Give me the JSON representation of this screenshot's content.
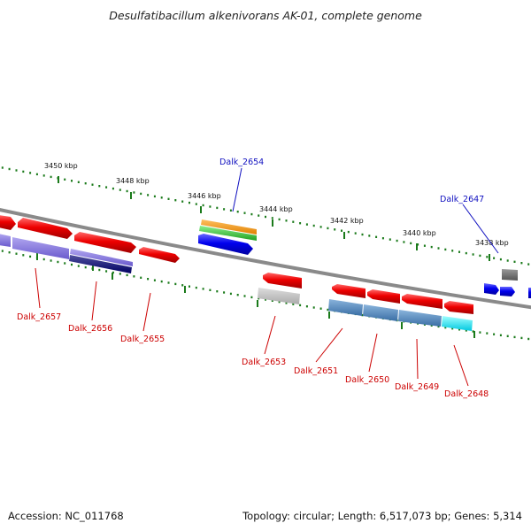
{
  "title": "Desulfatibacillum alkenivorans AK-01, complete genome",
  "ticks": [
    {
      "label": "3450 kbp"
    },
    {
      "label": "3448 kbp"
    },
    {
      "label": "3446 kbp"
    },
    {
      "label": "3444 kbp"
    },
    {
      "label": "3442 kbp"
    },
    {
      "label": "3440 kbp"
    },
    {
      "label": "3438 kbp"
    }
  ],
  "genes_labeled": [
    {
      "name": "Dalk_2654",
      "strand": "top"
    },
    {
      "name": "Dalk_2647",
      "strand": "top"
    },
    {
      "name": "Dalk_2657",
      "strand": "bottom"
    },
    {
      "name": "Dalk_2656",
      "strand": "bottom"
    },
    {
      "name": "Dalk_2655",
      "strand": "bottom"
    },
    {
      "name": "Dalk_2653",
      "strand": "bottom"
    },
    {
      "name": "Dalk_2651",
      "strand": "bottom"
    },
    {
      "name": "Dalk_2650",
      "strand": "bottom"
    },
    {
      "name": "Dalk_2649",
      "strand": "bottom"
    },
    {
      "name": "Dalk_2648",
      "strand": "bottom"
    }
  ],
  "colors": {
    "backbone": "#888888",
    "tick": "#1a7a1a",
    "gene_red": "#ee0000",
    "gene_blue": "#0000ee",
    "label_blue": "#1010c0",
    "label_red": "#cc0000"
  },
  "footer": {
    "accession": "Accession: NC_011768",
    "stats": "Topology: circular; Length: 6,517,073 bp; Genes: 5,314"
  }
}
